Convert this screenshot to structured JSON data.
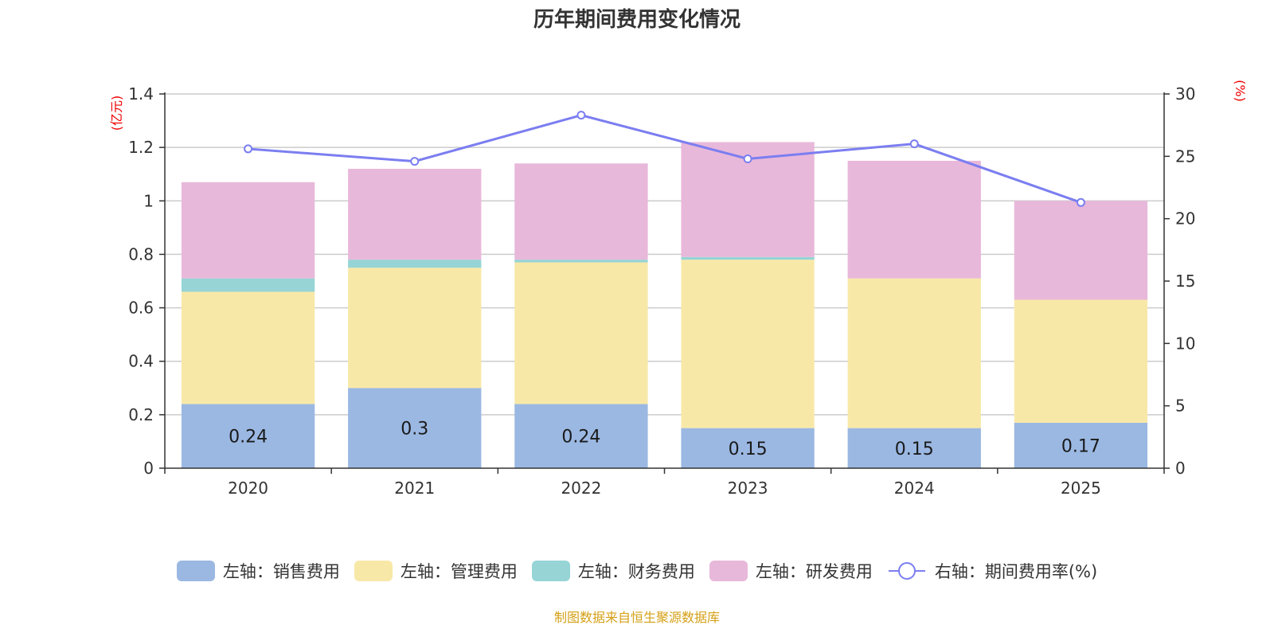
{
  "chart_data": {
    "type": "bar",
    "stacked": true,
    "title": "历年期间费用变化情况",
    "categories": [
      "2020",
      "2021",
      "2022",
      "2023",
      "2024",
      "2025"
    ],
    "left_axis": {
      "label": "(亿元)",
      "ylim": [
        0,
        1.4
      ],
      "ticks": [
        "0",
        "0.2",
        "0.4",
        "0.6",
        "0.8",
        "1",
        "1.2",
        "1.4"
      ],
      "tick_values": [
        0,
        0.2,
        0.4,
        0.6,
        0.8,
        1.0,
        1.2,
        1.4
      ]
    },
    "right_axis": {
      "label": "(%)",
      "ylim": [
        0,
        30
      ],
      "ticks": [
        "0",
        "5",
        "10",
        "15",
        "20",
        "25",
        "30"
      ],
      "tick_values": [
        0,
        5,
        10,
        15,
        20,
        25,
        30
      ]
    },
    "series": [
      {
        "name": "左轴：销售费用",
        "axis": "left",
        "kind": "bar",
        "color": "#9bb8e2",
        "values": [
          0.24,
          0.3,
          0.24,
          0.15,
          0.15,
          0.17
        ],
        "labels": [
          "0.24",
          "0.3",
          "0.24",
          "0.15",
          "0.15",
          "0.17"
        ]
      },
      {
        "name": "左轴：管理费用",
        "axis": "left",
        "kind": "bar",
        "color": "#f8e8a8",
        "values": [
          0.42,
          0.45,
          0.53,
          0.63,
          0.56,
          0.46
        ]
      },
      {
        "name": "左轴：财务费用",
        "axis": "left",
        "kind": "bar",
        "color": "#96d4d6",
        "values": [
          0.05,
          0.03,
          0.01,
          0.01,
          0.0,
          0.0
        ]
      },
      {
        "name": "左轴：研发费用",
        "axis": "left",
        "kind": "bar",
        "color": "#e8b8da",
        "values": [
          0.36,
          0.34,
          0.36,
          0.43,
          0.44,
          0.37
        ]
      },
      {
        "name": "右轴：期间费用率(%)",
        "axis": "right",
        "kind": "line",
        "color": "#7b7ef0",
        "values": [
          25.6,
          24.6,
          28.3,
          24.8,
          26.0,
          21.3
        ]
      }
    ],
    "legend_position": "bottom",
    "grid": true
  },
  "source_note": "制图数据来自恒生聚源数据库"
}
